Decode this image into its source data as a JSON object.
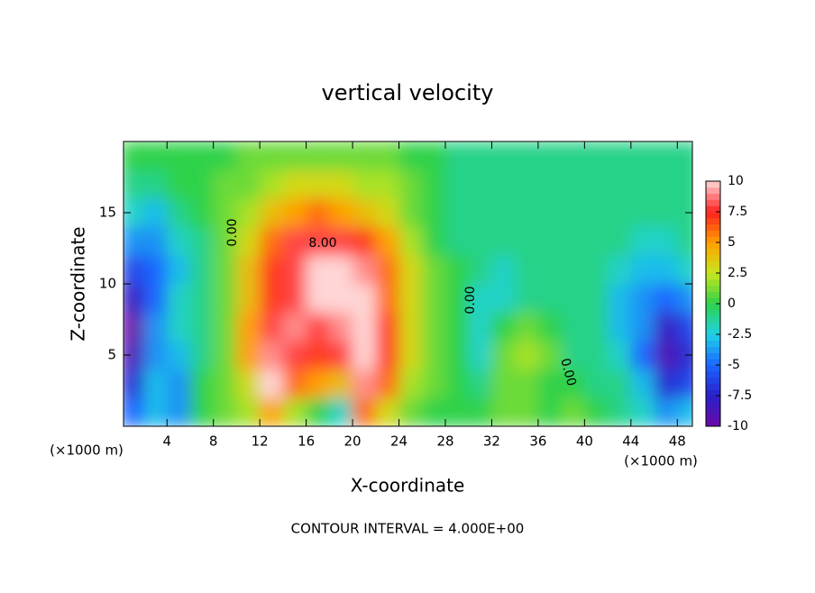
{
  "chart_data": {
    "type": "heatmap",
    "title": "vertical velocity",
    "xlabel": "X-coordinate",
    "ylabel": "Z-coordinate",
    "x_unit": "(×1000 m)",
    "footer": "CONTOUR INTERVAL = 4.000E+00",
    "contour_labels": [
      "0.00",
      "8.00",
      "0.00",
      "0.00"
    ],
    "x": [
      1,
      3,
      5,
      7,
      9,
      11,
      13,
      15,
      17,
      19,
      21,
      23,
      25,
      27,
      29,
      31,
      33,
      35,
      37,
      39,
      41,
      43,
      45,
      47,
      49
    ],
    "y": [
      1,
      3,
      5,
      7,
      9,
      11,
      13,
      15,
      17,
      19
    ],
    "z": [
      [
        -5,
        -3,
        -4,
        0,
        1,
        2,
        5,
        2,
        0,
        -2,
        6,
        3,
        1,
        0,
        0,
        0,
        1,
        1,
        0,
        1,
        0,
        -1,
        -2,
        -4,
        -3
      ],
      [
        -7,
        -3,
        -4,
        0,
        1,
        3,
        10,
        6,
        5,
        4,
        9,
        6,
        2,
        1,
        0,
        -1,
        1,
        1,
        0,
        0,
        -1,
        -1,
        -3,
        -7,
        -6
      ],
      [
        -9,
        -4,
        -3,
        -1,
        1,
        5,
        9,
        8,
        7,
        8,
        10,
        7,
        3,
        1,
        0,
        -2,
        1,
        2,
        1,
        -1,
        -1,
        -2,
        -5,
        -9,
        -7
      ],
      [
        -10,
        -4,
        -2,
        -1,
        1,
        5,
        8,
        9,
        8,
        9,
        10,
        7,
        3,
        1,
        0,
        -2,
        0,
        1,
        0,
        -1,
        -1,
        -3,
        -4,
        -8,
        -6
      ],
      [
        -8,
        -5,
        -2,
        -1,
        1,
        4,
        7,
        8,
        10,
        10,
        10,
        6,
        3,
        1,
        0,
        -2,
        -2,
        -1,
        -1,
        -1,
        -1,
        -3,
        -4,
        -5,
        -4
      ],
      [
        -6,
        -5,
        -3,
        -1,
        1,
        4,
        7,
        8,
        10,
        10,
        9,
        6,
        3,
        1,
        0,
        -1,
        -2,
        -1,
        -1,
        -1,
        -1,
        -2,
        -3,
        -3,
        -2
      ],
      [
        -4,
        -4,
        -2,
        -1,
        1,
        3,
        6,
        8,
        8,
        8,
        7,
        5,
        2,
        0,
        -1,
        -1,
        -1,
        -1,
        -1,
        -1,
        -1,
        -1,
        -2,
        -2,
        -1
      ],
      [
        -2,
        -3,
        -1,
        0,
        1,
        2,
        4,
        5,
        6,
        5,
        4,
        3,
        1,
        0,
        -1,
        -1,
        -1,
        -1,
        -1,
        -1,
        -1,
        -1,
        -1,
        -1,
        -1
      ],
      [
        -1,
        -1,
        0,
        0,
        1,
        1,
        2,
        3,
        3,
        3,
        2,
        2,
        1,
        0,
        -1,
        -1,
        -1,
        -1,
        -1,
        -1,
        -1,
        -1,
        -1,
        -1,
        -1
      ],
      [
        0,
        0,
        0,
        0,
        0,
        1,
        1,
        1,
        1,
        1,
        1,
        1,
        0,
        0,
        -1,
        -1,
        -1,
        -1,
        -1,
        -1,
        -1,
        -1,
        -1,
        -1,
        -1
      ]
    ],
    "xlim": [
      0.25,
      49.3
    ],
    "ylim": [
      0,
      20
    ],
    "xticks": [
      4,
      8,
      12,
      16,
      20,
      24,
      28,
      32,
      36,
      40,
      44,
      48
    ],
    "yticks": [
      5,
      10,
      15
    ],
    "clim": [
      -10,
      10
    ],
    "cticks": [
      -10,
      -7.5,
      -5,
      -2.5,
      0,
      2.5,
      5,
      7.5,
      10
    ],
    "colorscale": [
      "#6a0aa8",
      "#2a1fc8",
      "#1a66ff",
      "#1ed2e6",
      "#2ed24a",
      "#c8e61e",
      "#ffa000",
      "#ff2020",
      "#ffd6d6"
    ]
  }
}
